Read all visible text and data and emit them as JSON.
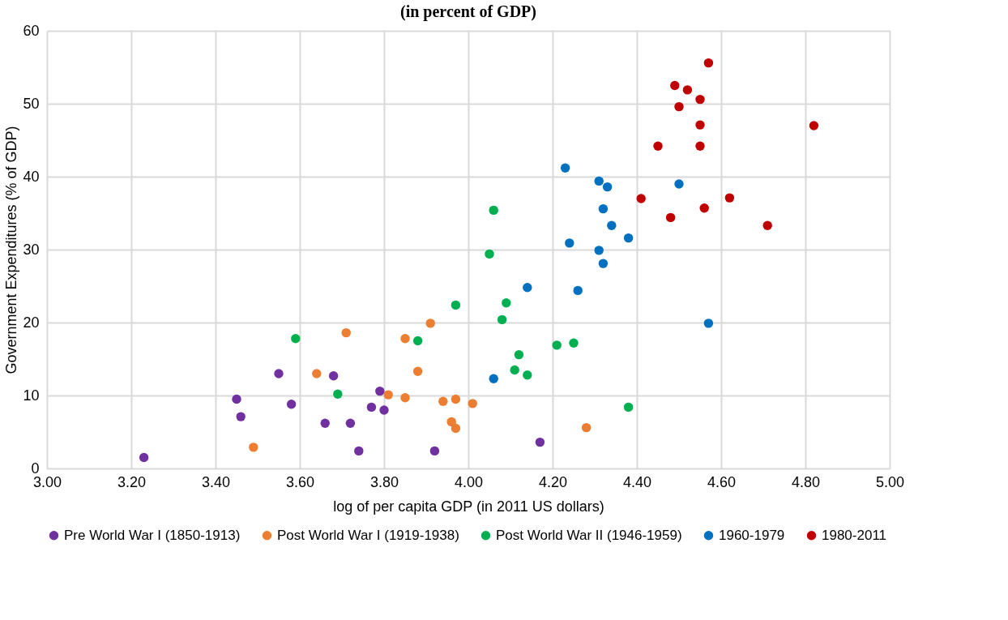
{
  "chart_data": {
    "type": "scatter",
    "title": "(in percent of GDP)",
    "xlabel": "log of per capita GDP (in 2011 US dollars)",
    "ylabel": "Government Expenditures (% of GDP)",
    "xlim": [
      3,
      5
    ],
    "xticks": [
      {
        "value": 3,
        "label": "3.00"
      },
      {
        "value": 3.2,
        "label": "3.20"
      },
      {
        "value": 3.4,
        "label": "3.40"
      },
      {
        "value": 3.6,
        "label": "3.60"
      },
      {
        "value": 3.8,
        "label": "3.80"
      },
      {
        "value": 4,
        "label": "4.00"
      },
      {
        "value": 4.2,
        "label": "4.20"
      },
      {
        "value": 4.4,
        "label": "4.40"
      },
      {
        "value": 4.6,
        "label": "4.60"
      },
      {
        "value": 4.8,
        "label": "4.80"
      },
      {
        "value": 5,
        "label": "5.00"
      }
    ],
    "ylim": [
      0,
      60
    ],
    "yticks": [
      0,
      10,
      20,
      30,
      40,
      50,
      60
    ],
    "grid": true,
    "legend": "bottom",
    "marker": "circle",
    "series": [
      {
        "name": "Pre World War I (1850-1913)",
        "color": "#7030a0",
        "x": [
          3.23,
          3.45,
          3.46,
          3.55,
          3.58,
          3.68,
          3.66,
          3.72,
          3.74,
          3.77,
          3.79,
          3.8,
          3.92,
          4.17
        ],
        "values": [
          1.5,
          9.5,
          7.1,
          13.0,
          8.8,
          12.7,
          6.2,
          6.2,
          2.4,
          8.4,
          10.6,
          8.0,
          2.4,
          3.6
        ]
      },
      {
        "name": "Post World War I (1919-1938)",
        "color": "#ed7d31",
        "x": [
          3.49,
          3.64,
          3.71,
          3.81,
          3.85,
          3.85,
          3.88,
          3.91,
          3.94,
          3.97,
          3.96,
          3.97,
          4.01,
          4.28
        ],
        "values": [
          2.9,
          13.0,
          18.6,
          10.1,
          17.8,
          9.7,
          13.3,
          19.9,
          9.2,
          9.5,
          6.4,
          5.5,
          8.9,
          5.6
        ]
      },
      {
        "name": "Post World War II (1946-1959)",
        "color": "#00b050",
        "x": [
          3.59,
          3.69,
          3.88,
          3.97,
          4.05,
          4.06,
          4.09,
          4.08,
          4.11,
          4.12,
          4.14,
          4.21,
          4.25,
          4.38
        ],
        "values": [
          17.8,
          10.2,
          17.5,
          22.4,
          29.4,
          35.4,
          22.7,
          20.4,
          13.5,
          15.6,
          12.8,
          16.9,
          17.2,
          8.4
        ]
      },
      {
        "name": "1960-1979",
        "color": "#0070c0",
        "x": [
          4.06,
          4.14,
          4.23,
          4.24,
          4.26,
          4.31,
          4.32,
          4.31,
          4.33,
          4.32,
          4.34,
          4.38,
          4.5,
          4.57
        ],
        "values": [
          12.3,
          24.8,
          41.2,
          30.9,
          24.4,
          29.9,
          28.1,
          39.4,
          38.6,
          35.6,
          33.3,
          31.6,
          39.0,
          19.9
        ]
      },
      {
        "name": "1980-2011",
        "color": "#c00000",
        "x": [
          4.41,
          4.45,
          4.48,
          4.49,
          4.52,
          4.5,
          4.55,
          4.55,
          4.55,
          4.57,
          4.56,
          4.62,
          4.71,
          4.82
        ],
        "values": [
          37.0,
          44.2,
          34.4,
          52.5,
          51.9,
          49.6,
          50.6,
          47.1,
          44.2,
          55.6,
          35.7,
          37.1,
          33.3,
          47.0
        ]
      }
    ]
  }
}
